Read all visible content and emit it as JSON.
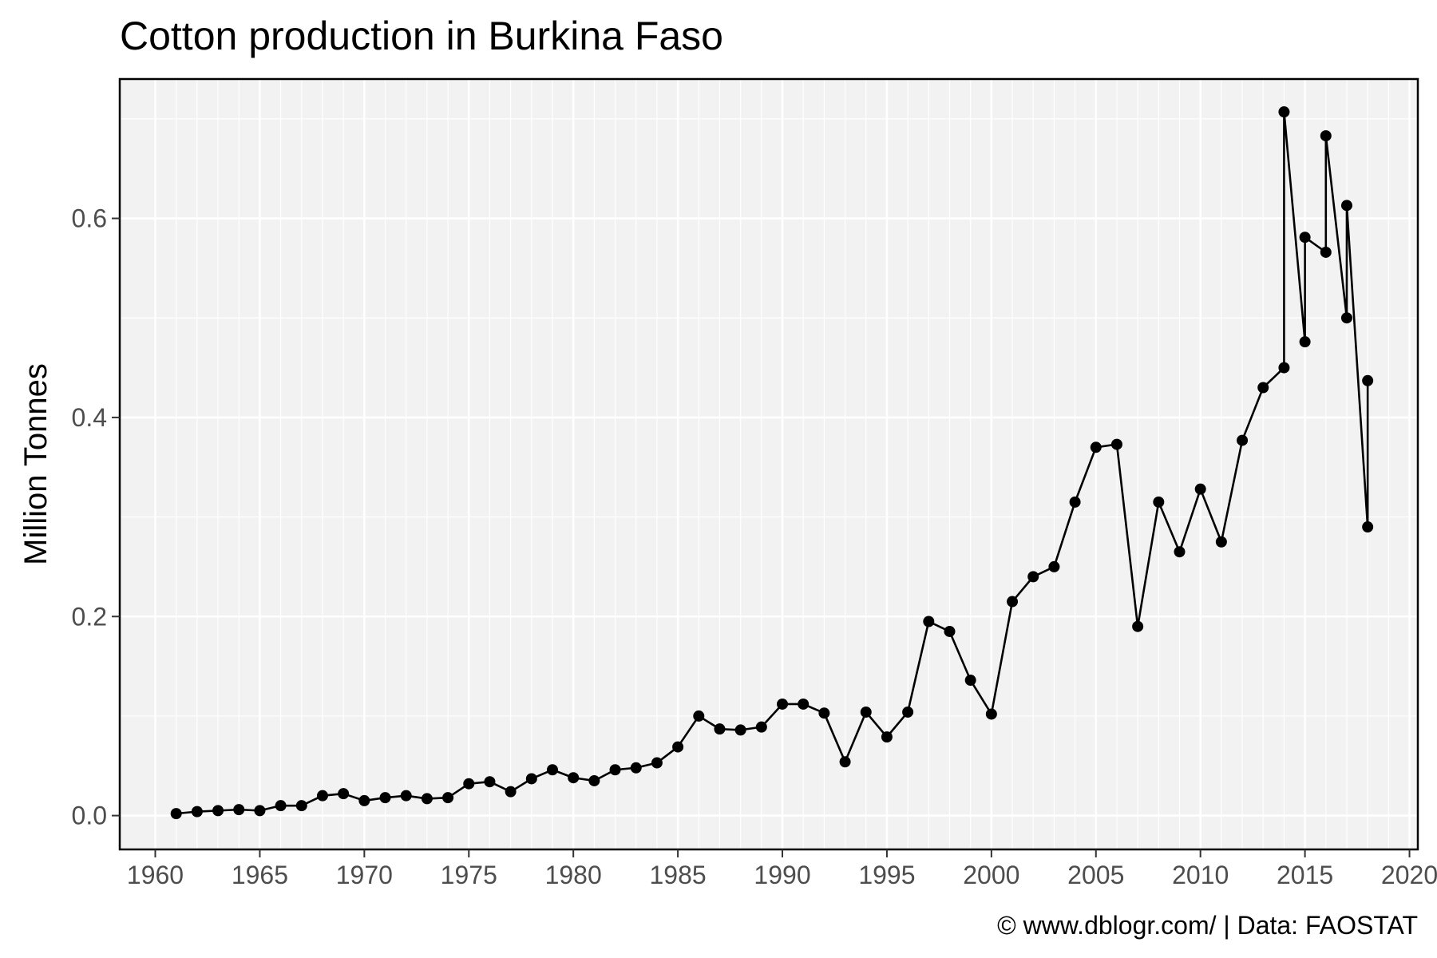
{
  "chart_data": {
    "type": "line",
    "title": "Cotton production in Burkina Faso",
    "xlabel": "",
    "ylabel": "Million Tonnes",
    "caption": "© www.dblogr.com/ | Data: FAOSTAT",
    "xlim": [
      1958.3,
      2020.4
    ],
    "ylim": [
      -0.034,
      0.74
    ],
    "x_ticks": [
      1960,
      1965,
      1970,
      1975,
      1980,
      1985,
      1990,
      1995,
      2000,
      2005,
      2010,
      2015,
      2020
    ],
    "x_tick_labels": [
      "1960",
      "1965",
      "1970",
      "1975",
      "1980",
      "1985",
      "1990",
      "1995",
      "2000",
      "2005",
      "2010",
      "2015",
      "2020"
    ],
    "x_minor_ticks": [
      1961,
      1962,
      1963,
      1964,
      1966,
      1967,
      1968,
      1969,
      1971,
      1972,
      1973,
      1974,
      1976,
      1977,
      1978,
      1979,
      1981,
      1982,
      1983,
      1984,
      1986,
      1987,
      1988,
      1989,
      1991,
      1992,
      1993,
      1994,
      1996,
      1997,
      1998,
      1999,
      2001,
      2002,
      2003,
      2004,
      2006,
      2007,
      2008,
      2009,
      2011,
      2012,
      2013,
      2014,
      2016,
      2017,
      2018,
      2019
    ],
    "y_ticks": [
      0.0,
      0.2,
      0.4,
      0.6
    ],
    "y_tick_labels": [
      "0.0",
      "0.2",
      "0.4",
      "0.6"
    ],
    "y_minor_ticks": [
      0.1,
      0.3,
      0.5,
      0.7
    ],
    "grid": true,
    "colors": {
      "panel": "#f2f2f2",
      "grid": "#ffffff",
      "series": "#000000",
      "border": "#000000"
    },
    "series": [
      {
        "x": [
          1961,
          1962,
          1963,
          1964,
          1965,
          1966,
          1967,
          1968,
          1969,
          1970,
          1971,
          1972,
          1973,
          1974,
          1975,
          1976,
          1977,
          1978,
          1979,
          1980,
          1981,
          1982,
          1983,
          1984,
          1985,
          1986,
          1987,
          1988,
          1989,
          1990,
          1991,
          1992,
          1993,
          1994,
          1995,
          1996,
          1997,
          1998,
          1999,
          2000,
          2001,
          2002,
          2003,
          2004,
          2005,
          2006,
          2007,
          2008,
          2009,
          2010,
          2011,
          2012,
          2013,
          2014,
          2014,
          2015,
          2015,
          2016,
          2016,
          2017,
          2017,
          2018,
          2018
        ],
        "y": [
          0.002,
          0.004,
          0.005,
          0.006,
          0.005,
          0.01,
          0.01,
          0.02,
          0.022,
          0.015,
          0.018,
          0.02,
          0.017,
          0.018,
          0.032,
          0.034,
          0.024,
          0.037,
          0.046,
          0.038,
          0.035,
          0.046,
          0.048,
          0.053,
          0.069,
          0.1,
          0.087,
          0.086,
          0.089,
          0.112,
          0.112,
          0.103,
          0.054,
          0.104,
          0.079,
          0.104,
          0.195,
          0.185,
          0.136,
          0.102,
          0.215,
          0.24,
          0.25,
          0.315,
          0.37,
          0.373,
          0.19,
          0.315,
          0.265,
          0.328,
          0.275,
          0.377,
          0.43,
          0.45,
          0.707,
          0.476,
          0.581,
          0.566,
          0.683,
          0.5,
          0.613,
          0.29,
          0.437
        ]
      }
    ]
  }
}
